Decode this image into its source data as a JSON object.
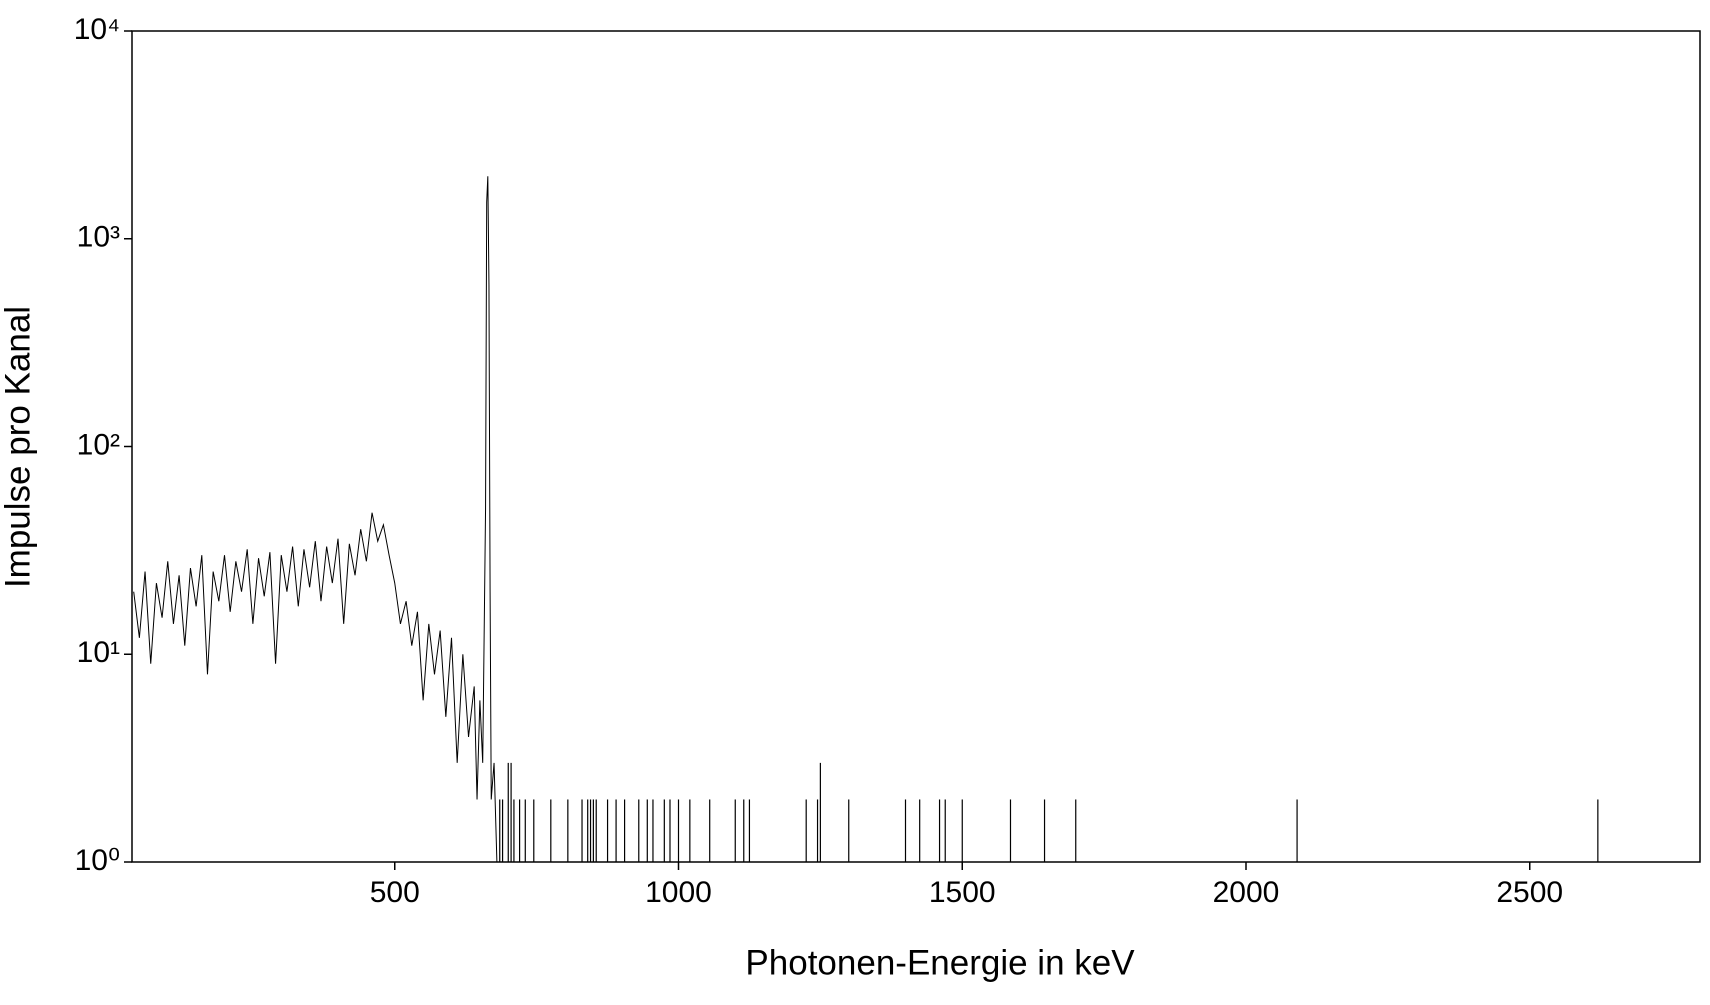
{
  "chart_data": {
    "type": "line",
    "xlabel": "Photonen-Energie in keV",
    "ylabel": "Impulse pro Kanal",
    "xlim": [
      37,
      2800
    ],
    "xticks": [
      500,
      1000,
      1500,
      2000,
      2500
    ],
    "ylim": [
      1,
      10000
    ],
    "log_y": true,
    "yticks": [
      {
        "value": 1,
        "label": "10⁰"
      },
      {
        "value": 10,
        "label": "10¹"
      },
      {
        "value": 100,
        "label": "10²"
      },
      {
        "value": 1000,
        "label": "10³"
      },
      {
        "value": 10000,
        "label": "10⁴"
      }
    ],
    "grid": false,
    "series": [
      {
        "color": "#000000",
        "style": "line",
        "x": [
          40,
          50,
          60,
          70,
          80,
          90,
          100,
          110,
          120,
          130,
          140,
          150,
          160,
          170,
          180,
          190,
          200,
          210,
          220,
          230,
          240,
          250,
          260,
          270,
          280,
          290,
          300,
          310,
          320,
          330,
          340,
          350,
          360,
          370,
          380,
          390,
          400,
          410,
          420,
          430,
          440,
          450,
          460,
          470,
          480,
          490,
          500,
          510,
          520,
          530,
          540,
          550,
          560,
          570,
          580,
          590,
          600,
          610,
          620,
          630,
          640,
          645,
          650,
          655,
          660,
          662,
          664,
          666,
          668,
          670,
          675,
          680
        ],
        "values": [
          20,
          12,
          25,
          9,
          22,
          15,
          28,
          14,
          24,
          11,
          26,
          17,
          30,
          8,
          25,
          18,
          30,
          16,
          28,
          20,
          32,
          14,
          29,
          19,
          31,
          9,
          30,
          20,
          33,
          17,
          32,
          21,
          35,
          18,
          33,
          22,
          36,
          14,
          34,
          24,
          40,
          28,
          48,
          35,
          42,
          30,
          22,
          14,
          18,
          11,
          16,
          6,
          14,
          8,
          13,
          5,
          12,
          3,
          10,
          4,
          7,
          2,
          6,
          3,
          50,
          1500,
          2000,
          600,
          20,
          2,
          3,
          1
        ]
      },
      {
        "color": "#000000",
        "style": "impulse",
        "x": [
          685,
          690,
          700,
          705,
          710,
          720,
          730,
          745,
          775,
          805,
          830,
          840,
          845,
          850,
          855,
          875,
          890,
          905,
          930,
          945,
          955,
          975,
          985,
          1000,
          1020,
          1055,
          1100,
          1115,
          1125,
          1225,
          1245,
          1250,
          1300,
          1400,
          1425,
          1460,
          1470,
          1500,
          1585,
          1645,
          1700,
          2090,
          2620
        ],
        "values": [
          2,
          2,
          3,
          3,
          2,
          2,
          2,
          2,
          2,
          2,
          2,
          2,
          2,
          2,
          2,
          2,
          2,
          2,
          2,
          2,
          2,
          2,
          2,
          2,
          2,
          2,
          2,
          2,
          2,
          2,
          2,
          3,
          2,
          2,
          2,
          2,
          2,
          2,
          2,
          2,
          2,
          2,
          2
        ]
      }
    ]
  }
}
